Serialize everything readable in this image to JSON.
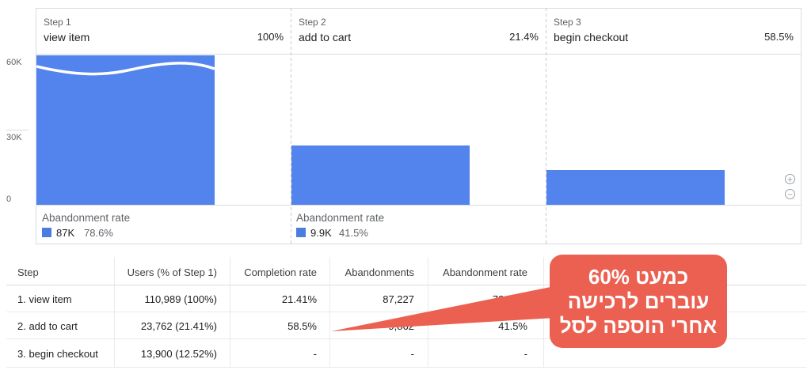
{
  "funnel": {
    "y_axis": [
      "60K",
      "30K",
      "0"
    ],
    "steps": [
      {
        "step_label": "Step 1",
        "name": "view item",
        "percent": "100%",
        "abandonment_label": "Abandonment rate",
        "abandon_count": "87K",
        "abandon_rate": "78.6%"
      },
      {
        "step_label": "Step 2",
        "name": "add to cart",
        "percent": "21.4%",
        "abandonment_label": "Abandonment rate",
        "abandon_count": "9.9K",
        "abandon_rate": "41.5%"
      },
      {
        "step_label": "Step 3",
        "name": "begin checkout",
        "percent": "58.5%"
      }
    ],
    "bar_values": [
      110989,
      23762,
      13900
    ],
    "bar_axis_max": 60000,
    "bar_color": "#5383ec",
    "zoom_in": "+",
    "zoom_out": "−"
  },
  "table": {
    "headers": [
      "Step",
      "Users (% of Step 1)",
      "Completion rate",
      "Abandonments",
      "Abandonment rate"
    ],
    "rows": [
      [
        "1. view item",
        "110,989 (100%)",
        "21.41%",
        "87,227",
        "78.59%"
      ],
      [
        "2. add to cart",
        "23,762 (21.41%)",
        "58.5%",
        "9,862",
        "41.5%"
      ],
      [
        "3. begin checkout",
        "13,900 (12.52%)",
        "-",
        "-",
        "-"
      ]
    ]
  },
  "callout": {
    "lines": [
      "כמעט 60%",
      "עוברים לרכישה",
      "אחרי הוספה לסל"
    ],
    "color": "#eb6050"
  }
}
